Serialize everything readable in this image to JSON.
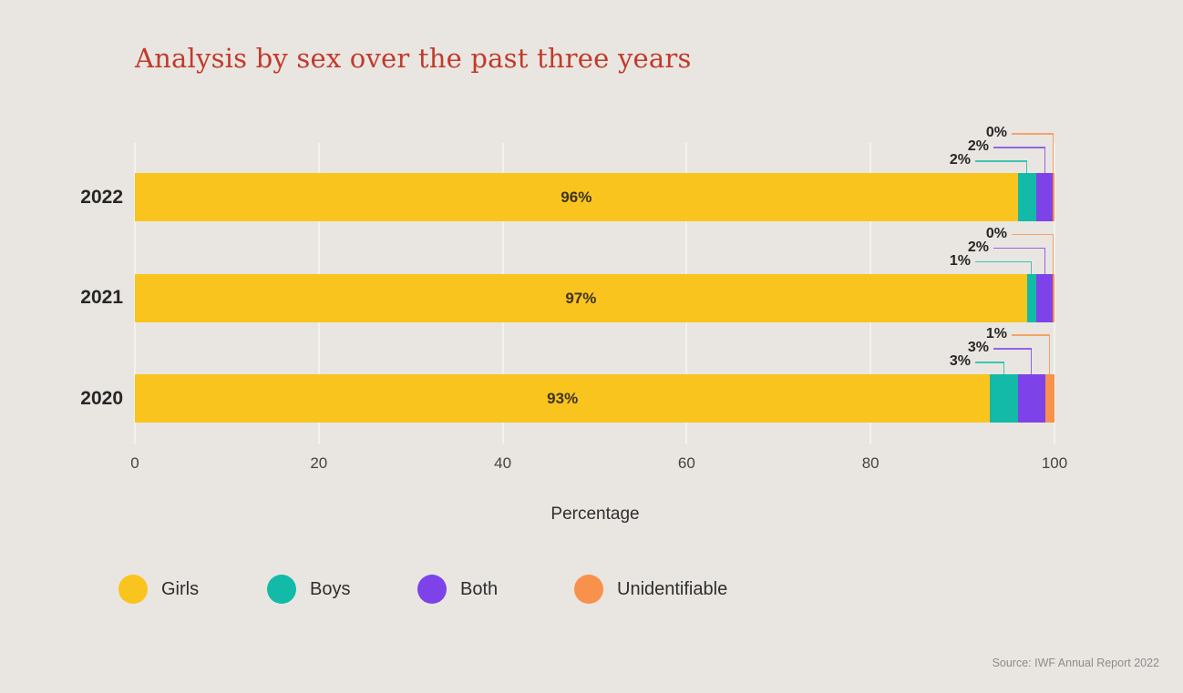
{
  "page": {
    "title": "Analysis by sex over the past three years",
    "source": "Source: IWF Annual Report 2022"
  },
  "colors": {
    "background": "#e9e6e1",
    "title": "#c23a2c",
    "girls": "#f9c41d",
    "boys": "#13baa8",
    "both": "#7d43e8",
    "unidentifiable": "#f7914b",
    "gridline": "#f4f2ed",
    "text_dark": "#262626",
    "bar_value_text": "#3d3322",
    "source_text": "#8c8c8c"
  },
  "chart_data": {
    "type": "bar",
    "orientation": "horizontal",
    "stacked": true,
    "title": "Analysis by sex over the past three years",
    "categories": [
      "2022",
      "2021",
      "2020"
    ],
    "series": [
      {
        "name": "Girls",
        "color": "#f9c41d",
        "values": [
          96,
          97,
          93
        ]
      },
      {
        "name": "Boys",
        "color": "#13baa8",
        "values": [
          2,
          1,
          3
        ]
      },
      {
        "name": "Both",
        "color": "#7d43e8",
        "values": [
          2,
          2,
          3
        ]
      },
      {
        "name": "Unidentifiable",
        "color": "#f7914b",
        "values": [
          0,
          0,
          1
        ]
      }
    ],
    "value_labels": {
      "in_bar": [
        "96%",
        "97%",
        "93%"
      ],
      "callouts": [
        [
          "2%",
          "2%",
          "0%"
        ],
        [
          "1%",
          "2%",
          "0%"
        ],
        [
          "3%",
          "3%",
          "1%"
        ]
      ]
    },
    "xlabel": "Percentage",
    "x_ticks": [
      "0",
      "20",
      "40",
      "60",
      "80",
      "100"
    ],
    "xlim": [
      0,
      100
    ],
    "grid": true,
    "legend_position": "bottom",
    "legend": [
      {
        "label": "Girls",
        "color": "#f9c41d"
      },
      {
        "label": "Boys",
        "color": "#13baa8"
      },
      {
        "label": "Both",
        "color": "#7d43e8"
      },
      {
        "label": "Unidentifiable",
        "color": "#f7914b"
      }
    ],
    "source": "Source: IWF Annual Report 2022"
  }
}
